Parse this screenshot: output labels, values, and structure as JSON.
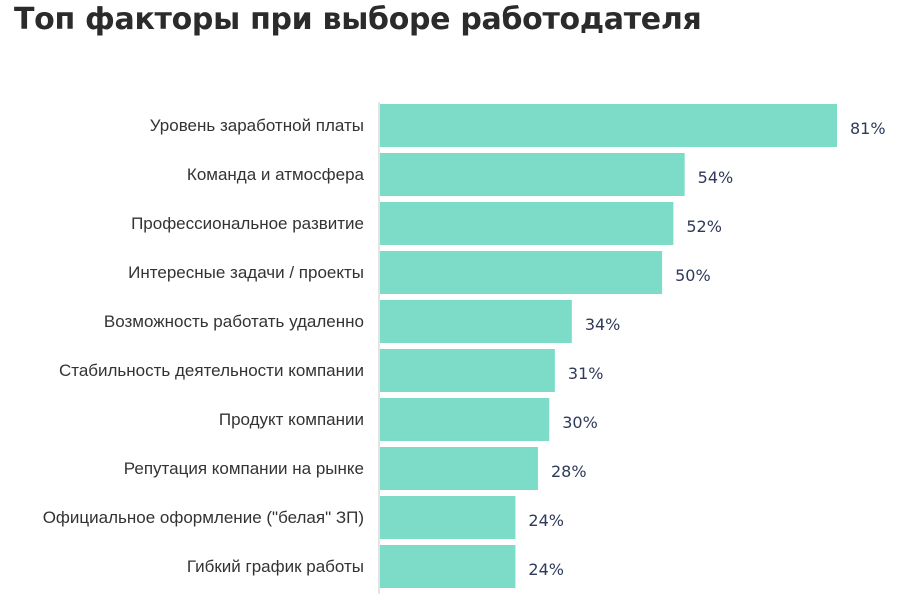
{
  "chart_data": {
    "type": "bar",
    "orientation": "horizontal",
    "title": "Топ факторы при выборе работодателя",
    "categories": [
      "Уровень заработной платы",
      "Команда и атмосфера",
      "Профессиональное развитие",
      "Интересные задачи / проекты",
      "Возможность работать удаленно",
      "Стабильность деятельности компании",
      "Продукт компании",
      "Репутация компании на рынке",
      "Официальное оформление (\"белая\" ЗП)",
      "Гибкий график работы"
    ],
    "values": [
      81,
      54,
      52,
      50,
      34,
      31,
      30,
      28,
      24,
      24
    ],
    "value_labels": [
      "81%",
      "54%",
      "52%",
      "50%",
      "34%",
      "31%",
      "30%",
      "28%",
      "24%",
      "24%"
    ],
    "unit": "%",
    "xlim": [
      0,
      100
    ],
    "grid": false,
    "legend": "none",
    "bar_color": "#7ddcc7",
    "axis_color": "#c8c8c8"
  }
}
